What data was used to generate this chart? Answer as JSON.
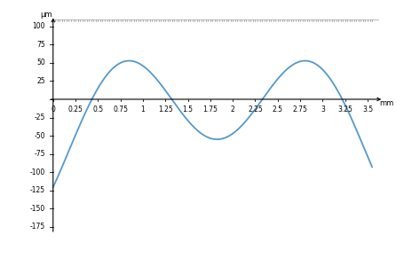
{
  "x_ticks": [
    0,
    0.25,
    0.5,
    0.75,
    1.0,
    1.25,
    1.5,
    1.75,
    2.0,
    2.25,
    2.5,
    2.75,
    3.0,
    3.25,
    3.5
  ],
  "y_ticks": [
    -175,
    -150,
    -125,
    -100,
    -75,
    -50,
    -25,
    0,
    25,
    50,
    75,
    100
  ],
  "x_label": "mm",
  "y_label": "μm",
  "ylim": [
    -185,
    118
  ],
  "xlim": [
    -0.05,
    3.78
  ],
  "line_color": "#5599CC",
  "line_width": 1.3,
  "background_color": "#ffffff",
  "figsize": [
    4.56,
    3.0
  ],
  "dpi": 100,
  "curve_A": 85.0,
  "curve_B": 25.0,
  "curve_period": 3.6,
  "curve_C": -37.0
}
